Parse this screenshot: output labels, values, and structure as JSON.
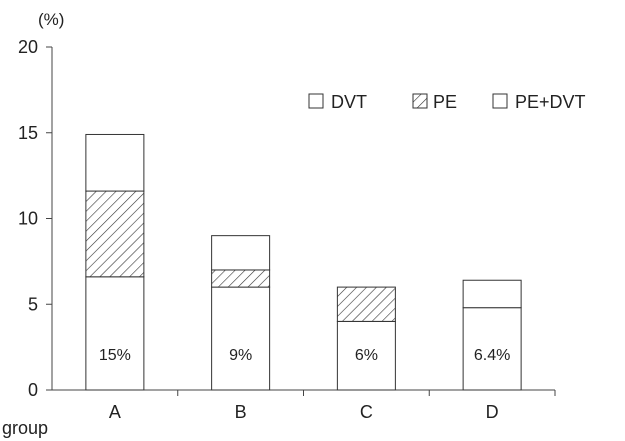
{
  "chart_data": {
    "type": "bar",
    "stacked": true,
    "unit_label": "(%)",
    "xlabel": "group",
    "categories": [
      "A",
      "B",
      "C",
      "D"
    ],
    "ylim": [
      0,
      20
    ],
    "yticks": [
      "0",
      "5",
      "10",
      "15",
      "20"
    ],
    "series": [
      {
        "name": "DVT",
        "values": [
          6.6,
          6.0,
          4.0,
          4.8
        ],
        "fill": "white"
      },
      {
        "name": "PE",
        "values": [
          5.0,
          1.0,
          2.0,
          0
        ],
        "fill": "hatch"
      },
      {
        "name": "PE+DVT",
        "values": [
          3.3,
          2.0,
          0,
          1.6
        ],
        "fill": "white"
      }
    ],
    "bar_labels": [
      "15%",
      "9%",
      "6%",
      "6.4%"
    ],
    "legend_position": "top-right",
    "grid": false
  },
  "colors": {
    "axis": "#444444",
    "bar_stroke": "#333333",
    "bar_fill": "#ffffff",
    "hatch": "#333333"
  }
}
